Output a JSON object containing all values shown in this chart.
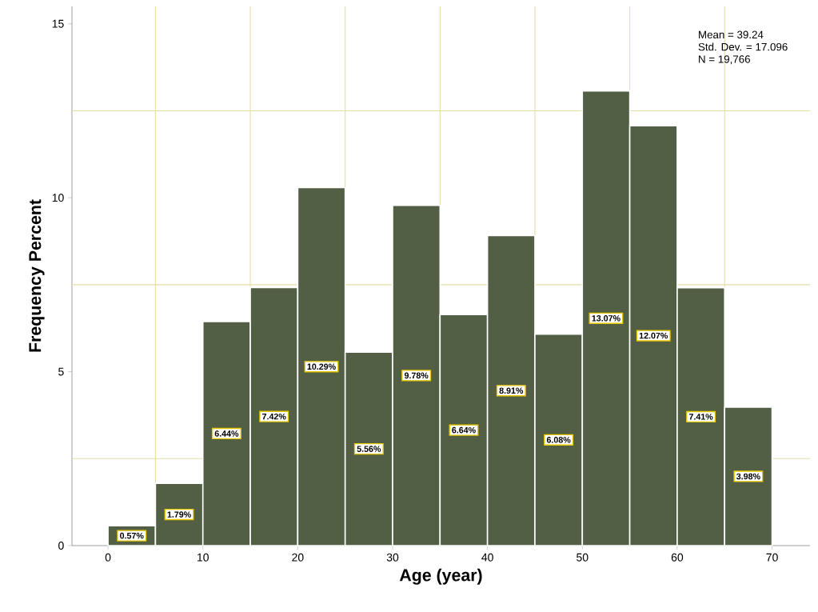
{
  "chart_data": {
    "type": "histogram",
    "xlabel": "Age (year)",
    "ylabel": "Frequency Percent",
    "bins": [
      0,
      5,
      10,
      15,
      20,
      25,
      30,
      35,
      40,
      45,
      50,
      55,
      60,
      65,
      70
    ],
    "values": [
      0.57,
      1.79,
      6.44,
      7.42,
      10.29,
      5.56,
      9.78,
      6.64,
      8.91,
      6.08,
      13.07,
      12.07,
      7.41,
      3.98
    ],
    "value_labels": [
      "0.57%",
      "1.79%",
      "6.44%",
      "7.42%",
      "10.29%",
      "5.56%",
      "9.78%",
      "6.64%",
      "8.91%",
      "6.08%",
      "13.07%",
      "12.07%",
      "7.41%",
      "3.98%"
    ],
    "color": "#535f45",
    "xlim": [
      -3.8,
      74
    ],
    "ylim": [
      0,
      15.5
    ],
    "xticks": [
      0,
      10,
      20,
      30,
      40,
      50,
      60,
      70
    ],
    "yticks": [
      0,
      5,
      10,
      15
    ],
    "ref_lines": [
      {
        "axis": "x",
        "value": 5,
        "color": "#e3dda6"
      },
      {
        "axis": "x",
        "value": 15,
        "color": "#e3dda6"
      },
      {
        "axis": "x",
        "value": 25,
        "color": "#e3dda6"
      },
      {
        "axis": "x",
        "value": 35,
        "color": "#e3dda6"
      },
      {
        "axis": "x",
        "value": 45,
        "color": "#e3dda6"
      },
      {
        "axis": "x",
        "value": 55,
        "color": "#e3dda6"
      },
      {
        "axis": "x",
        "value": 65,
        "color": "#e3dda6"
      },
      {
        "axis": "y",
        "value": 2.5,
        "color": "#e3dda6"
      },
      {
        "axis": "y",
        "value": 7.5,
        "color": "#e3dda6"
      },
      {
        "axis": "y",
        "value": 12.5,
        "color": "#e3dda6"
      }
    ],
    "annotations": [
      "Mean = 39.24",
      "Std. Dev. = 17.096",
      "N = 19,766"
    ]
  }
}
